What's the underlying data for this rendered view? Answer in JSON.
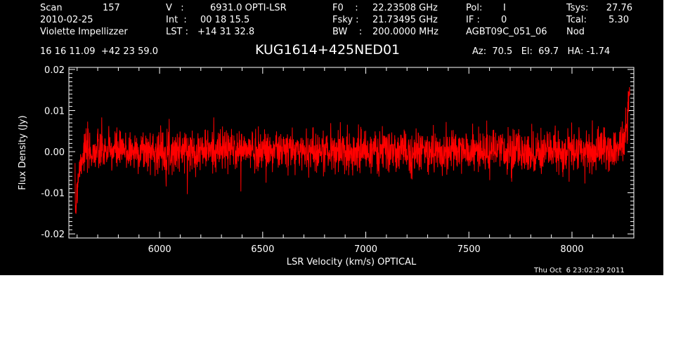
{
  "header": {
    "col1": {
      "scan_label": "Scan",
      "scan_value": "157",
      "date": "2010-02-25",
      "observer": "Violette Impellizzer"
    },
    "col2": {
      "v_label": "V   :",
      "v_value": "6931.0 OPTI-LSR",
      "int_label": "Int  :",
      "int_value": "00 18 15.5",
      "lst_label": "LST :",
      "lst_value": "+14 31 32.8"
    },
    "col3": {
      "f0_label": "F0    :",
      "f0_value": "22.23508 GHz",
      "fsky_label": "Fsky :",
      "fsky_value": "21.73495 GHz",
      "bw_label": "BW    :",
      "bw_value": "200.0000 MHz"
    },
    "col4": {
      "pol_label": "Pol:",
      "pol_value": "I",
      "if_label": "IF :",
      "if_value": "0",
      "project": "AGBT09C_051_06"
    },
    "col5": {
      "tsys_label": "Tsys:",
      "tsys_value": "27.76",
      "tcal_label": "Tcal:",
      "tcal_value": "5.30",
      "mode": "Nod"
    },
    "coords": "16 16 11.09  +42 23 59.0",
    "source": "KUG1614+425NED01",
    "pointing": "Az:  70.5   El:  69.7   HA: -1.74"
  },
  "timestamp": "Thu Oct  6 23:02:29 2011",
  "chart_data": {
    "type": "line",
    "xlabel": "LSR Velocity (km/s) OPTICAL",
    "ylabel": "Flux Density (Jy)",
    "xlim": [
      5560,
      8300
    ],
    "ylim": [
      -0.021,
      0.0205
    ],
    "x_ticks": [
      6000,
      6500,
      7000,
      7500,
      8000
    ],
    "x_tick_labels": [
      "6000",
      "6500",
      "7000",
      "7500",
      "8000"
    ],
    "y_ticks": [
      0.02,
      0.01,
      0.0,
      -0.01,
      -0.02
    ],
    "y_tick_labels": [
      "0.02",
      "0.01",
      "0.00",
      "-0.01",
      "-0.02"
    ],
    "series": [
      {
        "color": "#ff0000",
        "x_start": 5590,
        "x_end": 8280,
        "n_points": 2600,
        "baseline": 0.0,
        "noise_rms": 0.0025,
        "envelope": [
          [
            5590,
            -0.0125
          ],
          [
            5595,
            -0.0135
          ],
          [
            5600,
            -0.008
          ],
          [
            5610,
            -0.004
          ],
          [
            5630,
            0.0
          ],
          [
            6350,
            0.0005
          ],
          [
            6500,
            0.0004
          ],
          [
            7000,
            0.0
          ],
          [
            7500,
            0.0
          ],
          [
            8000,
            0.0
          ],
          [
            8200,
            0.0006
          ],
          [
            8240,
            0.002
          ],
          [
            8260,
            0.004
          ],
          [
            8270,
            0.008
          ],
          [
            8280,
            0.015
          ]
        ]
      }
    ]
  }
}
